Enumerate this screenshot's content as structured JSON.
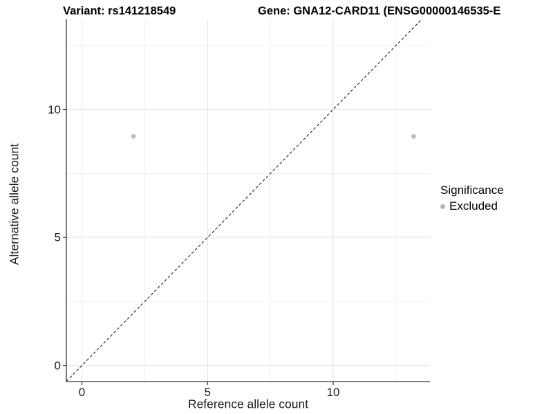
{
  "titles": {
    "variant": "Variant: rs141218549",
    "gene": "Gene: GNA12-CARD11 (ENSG00000146535-E"
  },
  "chart_data": {
    "type": "scatter",
    "xlabel": "Reference allele count",
    "ylabel": "Alternative allele count",
    "x_ticks": [
      0,
      5,
      10
    ],
    "y_ticks": [
      0,
      5,
      10
    ],
    "x_grid_major": [
      0,
      5,
      10
    ],
    "x_grid_minor": [
      2.5,
      7.5,
      12.5
    ],
    "y_grid_major": [
      0,
      5,
      10
    ],
    "y_grid_minor": [
      2.5,
      7.5,
      12.5
    ],
    "xlim": [
      -0.62,
      13.85
    ],
    "ylim": [
      -0.63,
      13.52
    ],
    "grid": true,
    "identity_line": {
      "style": "dashed",
      "equation": "y = x",
      "color": "#1a1a1a"
    },
    "series": [
      {
        "name": "Excluded",
        "color": "#bcbcbc",
        "points": [
          {
            "x": 2.05,
            "y": 8.95
          },
          {
            "x": 13.2,
            "y": 8.95
          }
        ]
      }
    ],
    "legend": {
      "title": "Significance",
      "position": "right",
      "items": [
        {
          "label": "Excluded",
          "color": "#b5b5b5"
        }
      ]
    }
  },
  "colors": {
    "background": "#ffffff",
    "grid_major": "#e2e2e2",
    "grid_minor": "#efefef",
    "axis_line": "#333333",
    "tick_mark": "#333333",
    "text": "#1a1a1a",
    "point": "#bcbcbc"
  }
}
